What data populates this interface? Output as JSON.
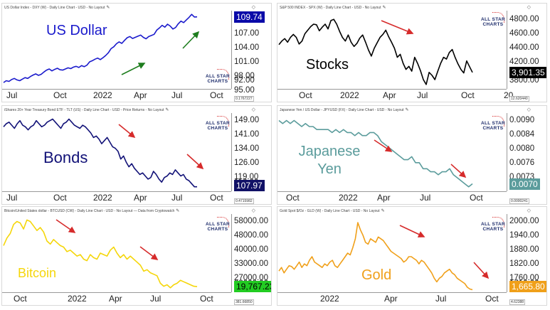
{
  "chart_data": [
    {
      "type": "line",
      "title": "US Dollar Index - DXY (W) - Daily Line Chart - USD - No Layout",
      "name": "US Dollar",
      "color": "#1a1acc",
      "price": "109.74",
      "small_value": "0.1767227",
      "y_ticks": [
        "107.00",
        "104.00",
        "101.00",
        "98.00",
        "95.00",
        "92.00"
      ],
      "ylim": [
        91,
        111
      ],
      "x_ticks": [
        "Jul",
        "Oct",
        "2022",
        "Apr",
        "Jul",
        "Oct"
      ],
      "values": [
        92.3,
        92.8,
        92.6,
        93.1,
        93.4,
        93.0,
        92.8,
        93.2,
        93.6,
        93.4,
        93.9,
        94.3,
        94.6,
        94.2,
        94.5,
        95.1,
        95.6,
        95.9,
        95.4,
        95.8,
        96.1,
        95.7,
        95.6,
        95.9,
        96.2,
        96.0,
        96.4,
        96.6,
        96.3,
        96.8,
        96.5,
        96.9,
        97.8,
        98.1,
        98.5,
        98.8,
        98.4,
        98.9,
        99.5,
        100.2,
        101.3,
        101.8,
        102.6,
        103.1,
        102.7,
        103.5,
        104.2,
        104.5,
        104.0,
        104.3,
        104.6,
        104.9,
        104.3,
        103.9,
        104.5,
        104.8,
        105.1,
        106.2,
        106.8,
        107.5,
        107.0,
        107.8,
        107.3,
        106.5,
        106.9,
        107.9,
        108.6,
        108.2,
        108.9,
        109.6,
        110.4,
        109.7,
        109.74
      ],
      "arrows_color": "#1e7d1e"
    },
    {
      "type": "line",
      "title": "S&P 500 INDEX - SPX (W) - Daily Line Chart - USD - No Layout",
      "name": "Stocks",
      "color": "#000000",
      "price": "3,901.35",
      "small_value": "12.620440",
      "y_ticks": [
        "4800.00",
        "4600.00",
        "4400.00",
        "4200.00",
        "4000.00",
        "3800.00"
      ],
      "ylim": [
        3650,
        4900
      ],
      "x_ticks": [
        "Oct",
        "2022",
        "Apr",
        "Jul",
        "Oct",
        "20"
      ],
      "values": [
        4360,
        4420,
        4460,
        4400,
        4480,
        4530,
        4480,
        4370,
        4420,
        4540,
        4600,
        4660,
        4700,
        4690,
        4590,
        4650,
        4700,
        4620,
        4760,
        4780,
        4700,
        4580,
        4480,
        4420,
        4520,
        4400,
        4330,
        4380,
        4470,
        4520,
        4400,
        4270,
        4170,
        4300,
        4390,
        4480,
        4530,
        4600,
        4490,
        4400,
        4300,
        4150,
        4200,
        4050,
        3950,
        4000,
        3920,
        4150,
        4050,
        3930,
        3780,
        3700,
        3900,
        3850,
        3780,
        3920,
        4050,
        4150,
        4120,
        4230,
        4280,
        4150,
        4040,
        3950,
        3890,
        4090,
        3995,
        3900
      ],
      "arrows_color": "#d62b2b"
    },
    {
      "type": "line",
      "title": "iShares 20+ Year Treasury Bond ETF - TLT (US) - Daily Line Chart - USD - Price Returns - No Layout",
      "name": "Bonds",
      "color": "#111177",
      "price": "107.97",
      "small_value": "0.4715982",
      "y_ticks": [
        "149.00",
        "141.00",
        "134.00",
        "126.00",
        "119.00",
        "112.00"
      ],
      "ylim": [
        106,
        155
      ],
      "x_ticks": [
        "Jul",
        "Oct",
        "2022",
        "Apr",
        "Jul",
        "Oct"
      ],
      "values": [
        147,
        149,
        150,
        148,
        146,
        149,
        151,
        148,
        147,
        145,
        147,
        148,
        151,
        149,
        147,
        148,
        150,
        151,
        152,
        150,
        148,
        146,
        149,
        150,
        152,
        150,
        148,
        147,
        146,
        148,
        147,
        145,
        143,
        140,
        141,
        139,
        136,
        138,
        140,
        137,
        134,
        133,
        131,
        126,
        128,
        124,
        121,
        123,
        120,
        118,
        116,
        117,
        115,
        113,
        114,
        118,
        116,
        113,
        111,
        114,
        115,
        117,
        116,
        119,
        117,
        115,
        116,
        113,
        112,
        110,
        108,
        107.97
      ],
      "arrows_color": "#d62b2b"
    },
    {
      "type": "line",
      "title": "Japanese Yen / US Dollar - JPYUSD (FX) - Daily Line Chart - USD - No Layout",
      "name": "Japanese Yen",
      "color": "#5b9c9c",
      "price": "0.0070",
      "small_value": "0.0000241",
      "y_ticks": [
        "0.0090",
        "0.0084",
        "0.0080",
        "0.0076",
        "0.0073"
      ],
      "ylim": [
        0.0068,
        0.0093
      ],
      "x_ticks": [
        "Oct",
        "2022",
        "Apr",
        "Jul",
        "Oct"
      ],
      "values": [
        0.0091,
        0.009,
        0.0091,
        0.009,
        0.0091,
        0.009,
        0.0089,
        0.009,
        0.0089,
        0.0089,
        0.0088,
        0.0088,
        0.0088,
        0.0088,
        0.0087,
        0.0088,
        0.0087,
        0.0088,
        0.0087,
        0.0087,
        0.0086,
        0.0087,
        0.0086,
        0.0086,
        0.0087,
        0.0087,
        0.0086,
        0.0084,
        0.0083,
        0.0082,
        0.0081,
        0.008,
        0.0079,
        0.0078,
        0.0078,
        0.0079,
        0.0077,
        0.0077,
        0.0075,
        0.0075,
        0.0074,
        0.0074,
        0.0073,
        0.0074,
        0.0074,
        0.0075,
        0.0073,
        0.0072,
        0.0071,
        0.007,
        0.0069,
        0.007
      ],
      "arrows_color": "#d62b2b"
    },
    {
      "type": "line",
      "title": "Bitcoin/United States dollar - BTCUSD (CW) - Daily Line Chart - USD - No Layout — Data from Cryptowatch",
      "name": "Bitcoin",
      "color": "#f5d60a",
      "price": "19,767.23",
      "small_value": "381.66850",
      "y_ticks": [
        "58000.00",
        "48000.00",
        "40000.00",
        "33000.00",
        "27000.00",
        "23000.00"
      ],
      "ylim": [
        17000,
        67000
      ],
      "x_ticks": [
        "Oct",
        "2022",
        "Apr",
        "Jul",
        "Oct"
      ],
      "values": [
        47000,
        52000,
        55000,
        61000,
        63000,
        62000,
        58000,
        64000,
        63000,
        60000,
        57000,
        59000,
        56000,
        50000,
        48000,
        51000,
        49000,
        47000,
        46000,
        43000,
        44000,
        42000,
        40000,
        41000,
        38000,
        37000,
        41000,
        39000,
        38000,
        42000,
        41000,
        40000,
        44000,
        46000,
        42000,
        39000,
        41000,
        38000,
        40000,
        38000,
        36000,
        34000,
        30000,
        31000,
        29000,
        28000,
        27000,
        22000,
        20000,
        21000,
        19000,
        21000,
        22000,
        24000,
        23000,
        22000,
        21000,
        20000,
        19767
      ],
      "arrows_color": "#d62b2b"
    },
    {
      "type": "line",
      "title": "Gold Spot $/Oz - GLD (W) - Daily Line Chart - USD - No Layout",
      "name": "Gold",
      "color": "#f0a01a",
      "price": "1,665.80",
      "small_value": "4.62388",
      "y_ticks": [
        "2000.00",
        "1940.00",
        "1880.00",
        "1820.00",
        "1760.00",
        "1710.00"
      ],
      "ylim": [
        1660,
        2080
      ],
      "x_ticks": [
        "2022",
        "Apr",
        "Jul",
        "Oct"
      ],
      "values": [
        1770,
        1790,
        1760,
        1780,
        1800,
        1795,
        1780,
        1800,
        1820,
        1790,
        1810,
        1800,
        1830,
        1850,
        1820,
        1810,
        1800,
        1790,
        1810,
        1800,
        1820,
        1830,
        1800,
        1790,
        1810,
        1830,
        1850,
        1870,
        1860,
        1900,
        1950,
        2040,
        2000,
        1970,
        1930,
        1920,
        1950,
        1940,
        1930,
        1960,
        1950,
        1940,
        1920,
        1900,
        1880,
        1870,
        1860,
        1850,
        1840,
        1820,
        1830,
        1850,
        1850,
        1840,
        1830,
        1810,
        1830,
        1820,
        1800,
        1780,
        1760,
        1730,
        1710,
        1730,
        1740,
        1760,
        1770,
        1780,
        1760,
        1750,
        1730,
        1720,
        1710,
        1700,
        1680,
        1670,
        1665.8
      ],
      "arrows_color": "#d62b2b"
    }
  ],
  "logo": {
    "line1": "ALL STAR",
    "line2": "CHARTS"
  },
  "pencil": "✎",
  "diamond": "◇"
}
